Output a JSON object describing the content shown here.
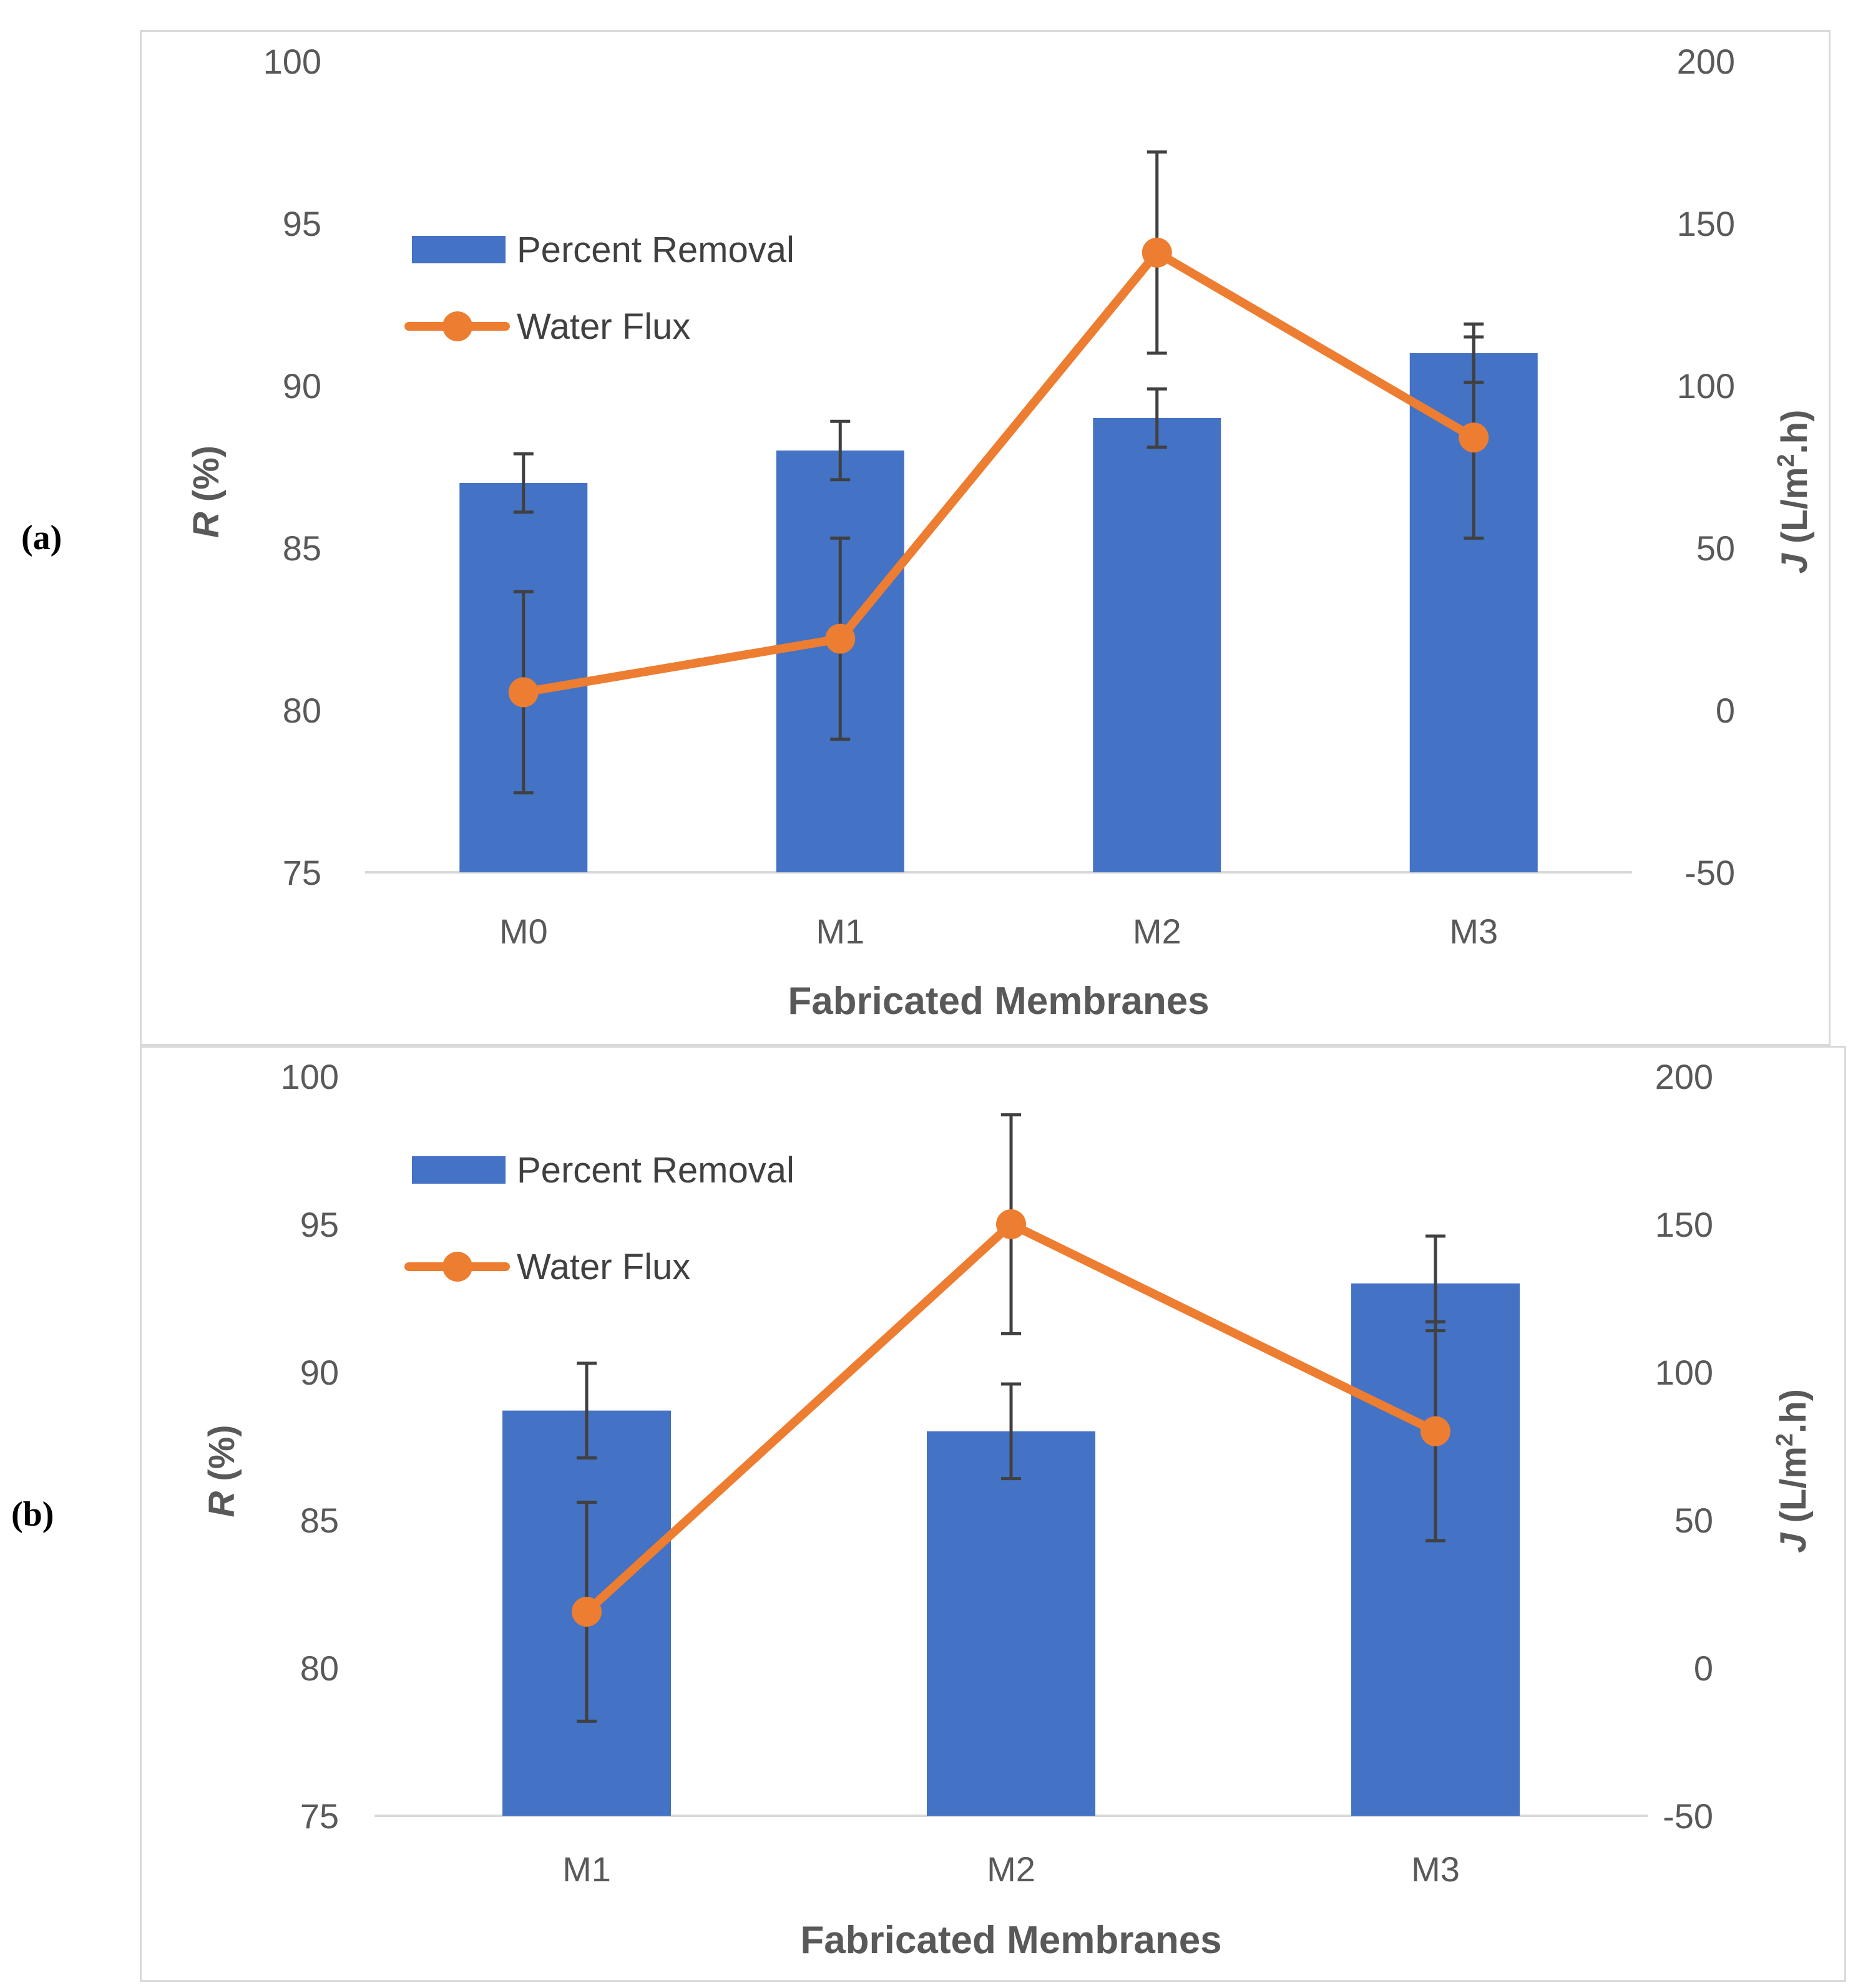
{
  "colors": {
    "bar": "#4472C4",
    "line": "#ED7D31",
    "error": "#404040",
    "axis": "#d9d9d9",
    "text": "#595959"
  },
  "panels": [
    {
      "label": "(a)"
    },
    {
      "label": "(b)"
    }
  ],
  "chart_data": [
    {
      "type": "bar",
      "panel": "(a)",
      "categories": [
        "M0",
        "M1",
        "M2",
        "M3"
      ],
      "xlabel": "Fabricated Membranes",
      "ylabel_italic": "R",
      "ylabel_rest": " (%)",
      "y2label_italic": "J",
      "y2label_rest": " (L/m",
      "y2label_sup": "2",
      "y2label_end": ".h)",
      "ylim": [
        75,
        100
      ],
      "yticks": [
        75,
        80,
        85,
        90,
        95,
        100
      ],
      "y2lim": [
        -50,
        200
      ],
      "y2ticks": [
        -50,
        0,
        50,
        100,
        150,
        200
      ],
      "series": [
        {
          "name": "Percent Removal",
          "kind": "bar",
          "axis": "left",
          "values": [
            87,
            88,
            89,
            91
          ],
          "errors": [
            0.9,
            0.9,
            0.9,
            0.9
          ]
        },
        {
          "name": "Water Flux",
          "kind": "line",
          "axis": "right",
          "values": [
            5.5,
            22,
            141,
            84
          ],
          "errors": [
            31,
            31,
            31,
            31
          ]
        }
      ]
    },
    {
      "type": "bar",
      "panel": "(b)",
      "categories": [
        "M1",
        "M2",
        "M3"
      ],
      "xlabel": "Fabricated Membranes",
      "ylabel_italic": "R",
      "ylabel_rest": " (%)",
      "y2label_italic": "J",
      "y2label_rest": " (L/m",
      "y2label_sup": "2",
      "y2label_end": ".h)",
      "ylim": [
        75,
        100
      ],
      "yticks": [
        75,
        80,
        85,
        90,
        95,
        100
      ],
      "y2lim": [
        -50,
        200
      ],
      "y2ticks": [
        -50,
        0,
        50,
        100,
        150,
        200
      ],
      "series": [
        {
          "name": "Percent Removal",
          "kind": "bar",
          "axis": "left",
          "values": [
            88.7,
            88,
            93
          ],
          "errors": [
            1.6,
            1.6,
            1.6
          ]
        },
        {
          "name": "Water Flux",
          "kind": "line",
          "axis": "right",
          "values": [
            19,
            150,
            80
          ],
          "errors": [
            37,
            37,
            37
          ]
        }
      ]
    }
  ]
}
